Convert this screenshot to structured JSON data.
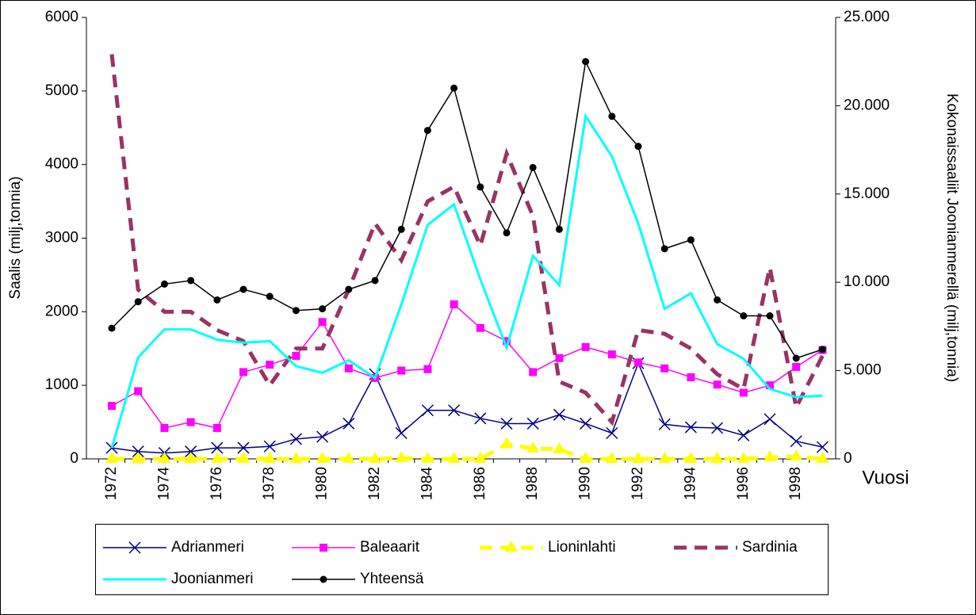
{
  "chart_data": {
    "type": "line",
    "y_axis_label": "Saalis (milj,tonnia)",
    "y2_axis_label": "Kokonaissaaliit Joonianmerellä (milj,tonnia)",
    "x_axis_label": "Vuosi",
    "categories": [
      "1972",
      null,
      "1974",
      null,
      "1976",
      null,
      "1978",
      null,
      "1980",
      null,
      "1982",
      null,
      "1984",
      null,
      "1986",
      null,
      "1988",
      null,
      "1990",
      null,
      "1992",
      null,
      "1994",
      null,
      "1996",
      null,
      "1998",
      null
    ],
    "ylim": [
      0,
      6000
    ],
    "yticks": [
      0,
      1000,
      2000,
      3000,
      4000,
      5000,
      6000
    ],
    "y2lim": [
      0,
      25000
    ],
    "y2ticks": [
      0,
      {
        "value": 5000,
        "label": "5.000"
      },
      {
        "value": 10000,
        "label": "10.000"
      },
      {
        "value": 15000,
        "label": "15.000"
      },
      {
        "value": 20000,
        "label": "20.000"
      },
      {
        "value": 25000,
        "label": "25.000"
      }
    ],
    "series": [
      {
        "name": "Adrianmeri",
        "color": "#000080",
        "marker": "x",
        "dash": false,
        "values": [
          150,
          100,
          80,
          100,
          150,
          150,
          170,
          270,
          300,
          480,
          1150,
          350,
          660,
          660,
          550,
          480,
          480,
          600,
          480,
          350,
          1300,
          470,
          430,
          420,
          320,
          540,
          240,
          160
        ]
      },
      {
        "name": "Baleaarit",
        "color": "#ff00ff",
        "marker": "square",
        "dash": false,
        "values": [
          720,
          920,
          420,
          500,
          420,
          1180,
          1280,
          1400,
          1860,
          1230,
          1100,
          1200,
          1220,
          2100,
          1780,
          1600,
          1180,
          1370,
          1520,
          1420,
          1310,
          1230,
          1110,
          1010,
          900,
          1000,
          1250,
          1480
        ]
      },
      {
        "name": "Lioninlahti",
        "color": "#ffff00",
        "marker": "triangle",
        "dash": true,
        "values": [
          0,
          0,
          0,
          0,
          0,
          0,
          0,
          0,
          0,
          0,
          0,
          10,
          0,
          0,
          0,
          200,
          140,
          130,
          0,
          0,
          0,
          0,
          0,
          0,
          0,
          20,
          30,
          0
        ]
      },
      {
        "name": "Sardinia",
        "color": "#993366",
        "marker": "none",
        "dash": true,
        "values": [
          5500,
          2300,
          2000,
          2000,
          1750,
          1600,
          1000,
          1500,
          1500,
          2300,
          3200,
          2700,
          3500,
          3700,
          2900,
          4150,
          3300,
          1050,
          900,
          500,
          1750,
          1700,
          1500,
          1150,
          950,
          2600,
          700,
          1400
        ]
      },
      {
        "name": "Joonianmeri",
        "color": "#00ffff",
        "marker": "none",
        "dash": false,
        "values": [
          150,
          1380,
          1760,
          1760,
          1620,
          1580,
          1600,
          1260,
          1170,
          1340,
          1100,
          2100,
          3180,
          3460,
          2440,
          1510,
          2760,
          2360,
          4660,
          4110,
          3200,
          2040,
          2250,
          1560,
          1360,
          950,
          840,
          860
        ]
      },
      {
        "name": "Yhteensä",
        "color": "#000000",
        "marker": "circle",
        "dash": false,
        "axis": "y2",
        "values": [
          7400,
          8900,
          9900,
          10100,
          9000,
          9600,
          9200,
          8400,
          8500,
          9600,
          10100,
          13000,
          18600,
          21000,
          15400,
          12800,
          16500,
          13000,
          22500,
          19400,
          17700,
          11900,
          12400,
          9000,
          8100,
          8100,
          5700,
          6200
        ]
      }
    ]
  }
}
